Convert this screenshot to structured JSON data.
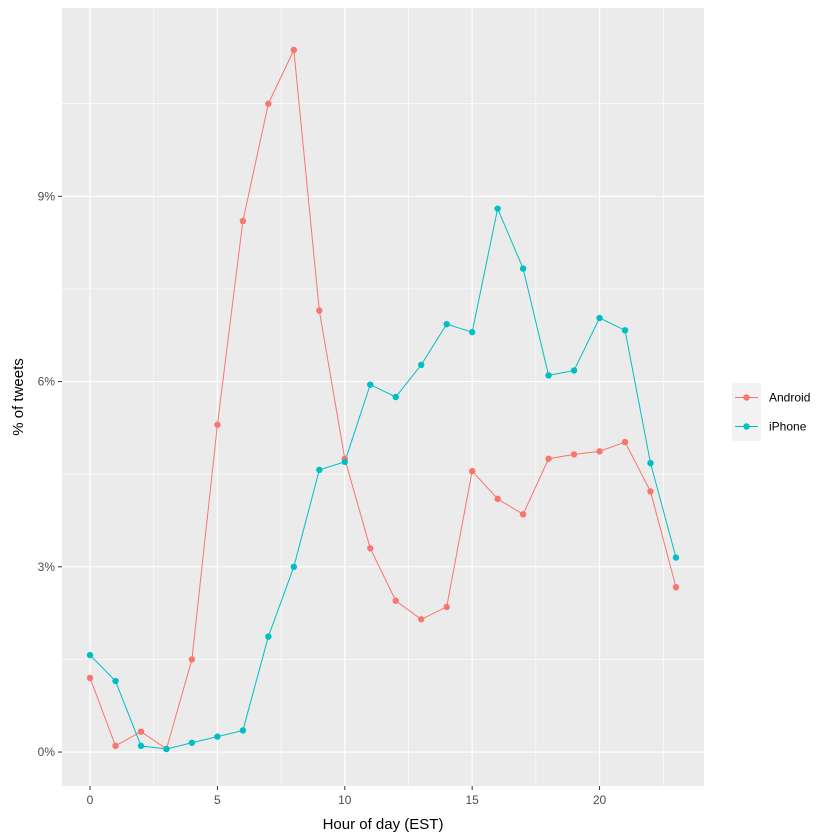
{
  "chart_data": {
    "type": "line",
    "xlabel": "Hour of day (EST)",
    "ylabel": "% of tweets",
    "xlim": [
      -1.1,
      24.1
    ],
    "ylim": [
      -0.55,
      12.05
    ],
    "x_ticks": [
      0,
      5,
      10,
      15,
      20
    ],
    "x_tick_labels": [
      "0",
      "5",
      "10",
      "15",
      "20"
    ],
    "y_ticks": [
      0,
      3,
      6,
      9
    ],
    "y_tick_labels": [
      "0%",
      "3%",
      "6%",
      "9%"
    ],
    "grid": true,
    "legend_position": "right",
    "x": [
      0,
      1,
      2,
      3,
      4,
      5,
      6,
      7,
      8,
      9,
      10,
      11,
      12,
      13,
      14,
      15,
      16,
      17,
      18,
      19,
      20,
      21,
      22,
      23
    ],
    "series": [
      {
        "name": "Android",
        "color": "#F8766D",
        "values": [
          1.2,
          0.1,
          0.33,
          0.05,
          1.5,
          5.3,
          8.6,
          10.5,
          11.37,
          7.15,
          4.75,
          3.3,
          2.45,
          2.15,
          2.35,
          4.55,
          4.1,
          3.85,
          4.75,
          4.82,
          4.87,
          5.02,
          4.22,
          2.67
        ]
      },
      {
        "name": "iPhone",
        "color": "#00BFC4",
        "values": [
          1.57,
          1.15,
          0.1,
          0.05,
          0.15,
          0.25,
          0.35,
          1.87,
          3.0,
          4.57,
          4.7,
          5.95,
          5.75,
          6.27,
          6.93,
          6.8,
          8.8,
          7.83,
          6.1,
          6.18,
          7.03,
          6.83,
          4.68,
          3.15
        ]
      }
    ]
  }
}
